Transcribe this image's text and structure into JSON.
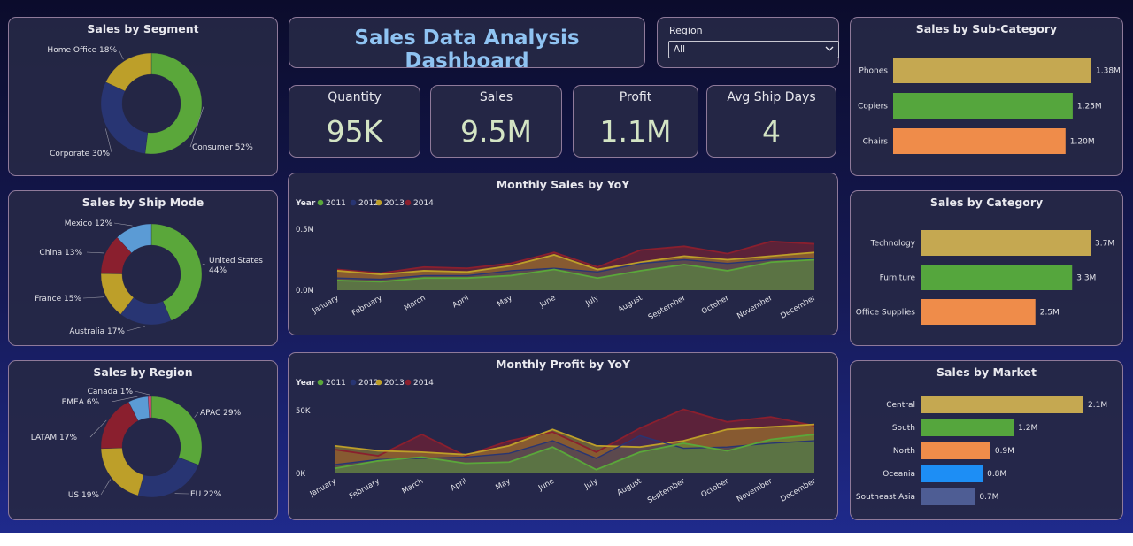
{
  "dashboard": {
    "title": "Sales Data Analysis Dashboard",
    "slicer": {
      "label": "Region",
      "value": "All"
    },
    "kpis": [
      {
        "label": "Quantity",
        "value": "95K"
      },
      {
        "label": "Sales",
        "value": "9.5M"
      },
      {
        "label": "Profit",
        "value": "1.1M"
      },
      {
        "label": "Avg Ship Days",
        "value": "4"
      }
    ]
  },
  "colors": {
    "green": "#5aa73a",
    "navy": "#283573",
    "gold": "#bd9f29",
    "darkred": "#8a1f2e",
    "steelblue": "#5b9bd5",
    "purple": "#7a2a80",
    "pink": "#d05070",
    "bar_gold": "#c5a851",
    "bar_green": "#55a63d",
    "bar_orange": "#ef8c4a",
    "bar_blue": "#1d8ef5",
    "bar_slate": "#4e5d94"
  },
  "chart_data": [
    {
      "id": "segment",
      "type": "pie",
      "title": "Sales by Segment",
      "labels": [
        "Consumer",
        "Corporate",
        "Home Office"
      ],
      "values": [
        52,
        30,
        18
      ],
      "display": [
        "Consumer 52%",
        "Corporate 30%",
        "Home Office 18%"
      ]
    },
    {
      "id": "shipmode",
      "type": "pie",
      "title": "Sales by Ship Mode",
      "labels": [
        "United States",
        "Australia",
        "France",
        "China",
        "Mexico"
      ],
      "values": [
        44,
        17,
        15,
        13,
        12
      ],
      "display": [
        "United States\n44%",
        "Australia 17%",
        "France 15%",
        "China 13%",
        "Mexico 12%"
      ]
    },
    {
      "id": "region",
      "type": "pie",
      "title": "Sales by Region",
      "labels": [
        "APAC",
        "EU",
        "US",
        "LATAM",
        "EMEA",
        "Canada"
      ],
      "values": [
        29,
        22,
        19,
        17,
        6,
        1
      ],
      "display": [
        "APAC 29%",
        "EU 22%",
        "US 19%",
        "LATAM 17%",
        "EMEA 6%",
        "Canada 1%"
      ]
    },
    {
      "id": "monthly_sales",
      "type": "area",
      "title": "Monthly Sales by YoY",
      "legend_title": "Year",
      "categories": [
        "January",
        "February",
        "March",
        "April",
        "May",
        "June",
        "July",
        "August",
        "September",
        "October",
        "November",
        "December"
      ],
      "yticks": [
        {
          "v": 0,
          "label": "0.0M"
        },
        {
          "v": 0.5,
          "label": "0.5M"
        }
      ],
      "ylim": [
        0,
        0.5
      ],
      "series": [
        {
          "name": "2011",
          "values": [
            0.08,
            0.07,
            0.1,
            0.1,
            0.12,
            0.17,
            0.1,
            0.16,
            0.21,
            0.16,
            0.23,
            0.25
          ]
        },
        {
          "name": "2012",
          "values": [
            0.1,
            0.09,
            0.12,
            0.12,
            0.16,
            0.18,
            0.15,
            0.22,
            0.25,
            0.22,
            0.25,
            0.26
          ]
        },
        {
          "name": "2013",
          "values": [
            0.16,
            0.13,
            0.16,
            0.15,
            0.2,
            0.29,
            0.17,
            0.23,
            0.28,
            0.25,
            0.28,
            0.31
          ]
        },
        {
          "name": "2014",
          "values": [
            0.17,
            0.14,
            0.19,
            0.18,
            0.22,
            0.31,
            0.19,
            0.33,
            0.36,
            0.3,
            0.4,
            0.38
          ]
        }
      ]
    },
    {
      "id": "monthly_profit",
      "type": "area",
      "title": "Monthly Profit by YoY",
      "legend_title": "Year",
      "categories": [
        "January",
        "February",
        "March",
        "April",
        "May",
        "June",
        "July",
        "August",
        "September",
        "October",
        "November",
        "December"
      ],
      "yticks": [
        {
          "v": 0,
          "label": "0K"
        },
        {
          "v": 50,
          "label": "50K"
        }
      ],
      "ylim": [
        0,
        50
      ],
      "series": [
        {
          "name": "2011",
          "values": [
            4,
            10,
            13,
            8,
            9,
            21,
            3,
            17,
            24,
            18,
            27,
            31
          ]
        },
        {
          "name": "2012",
          "values": [
            7,
            11,
            12,
            13,
            16,
            26,
            12,
            30,
            20,
            21,
            24,
            26
          ]
        },
        {
          "name": "2013",
          "values": [
            22,
            18,
            17,
            15,
            22,
            35,
            22,
            21,
            26,
            35,
            37,
            39
          ]
        },
        {
          "name": "2014",
          "values": [
            19,
            14,
            31,
            14,
            26,
            33,
            17,
            36,
            51,
            41,
            45,
            38
          ]
        }
      ]
    },
    {
      "id": "subcategory",
      "type": "bar",
      "title": "Sales by Sub-Category",
      "categories": [
        "Phones",
        "Copiers",
        "Chairs"
      ],
      "values": [
        1.38,
        1.25,
        1.2
      ],
      "labels": [
        "1.38M",
        "1.25M",
        "1.20M"
      ]
    },
    {
      "id": "category",
      "type": "bar",
      "title": "Sales by Category",
      "categories": [
        "Technology",
        "Furniture",
        "Office Supplies"
      ],
      "values": [
        3.7,
        3.3,
        2.5
      ],
      "labels": [
        "3.7M",
        "3.3M",
        "2.5M"
      ]
    },
    {
      "id": "market",
      "type": "bar",
      "title": "Sales by Market",
      "categories": [
        "Central",
        "South",
        "North",
        "Oceania",
        "Southeast Asia"
      ],
      "values": [
        2.1,
        1.2,
        0.9,
        0.8,
        0.7
      ],
      "labels": [
        "2.1M",
        "1.2M",
        "0.9M",
        "0.8M",
        "0.7M"
      ]
    }
  ]
}
